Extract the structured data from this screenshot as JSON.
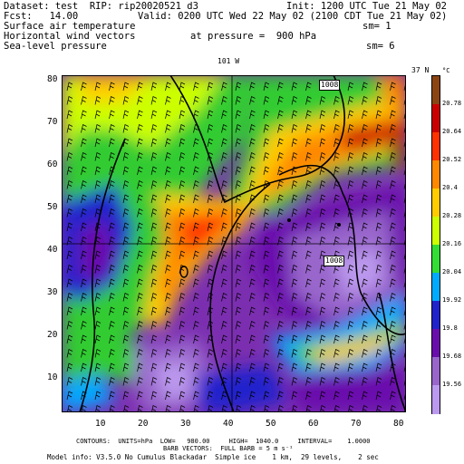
{
  "header": {
    "dataset_line": "Dataset: test  RIP: rip20020521 d3",
    "fcst_line": "Fcst:   14.00",
    "init_line": "Init: 1200 UTC Tue 21 May 02",
    "valid_line": "Valid: 0200 UTC Wed 22 May 02 (2100 CDT Tue 21 May 02)",
    "field1": "Surface air temperature",
    "sm1": "sm= 1",
    "field2": "Horizontal wind vectors",
    "pressure": "at pressure =  900 hPa",
    "field3": "Sea-level pressure",
    "sm2": "sm= 6"
  },
  "map": {
    "top_label_lon": "101 W",
    "top_label_lat": "37 N",
    "x_ticks": [
      "10",
      "20",
      "30",
      "40",
      "50",
      "60",
      "70",
      "80"
    ],
    "y_ticks": [
      "10",
      "20",
      "30",
      "40",
      "50",
      "60",
      "70",
      "80"
    ],
    "isobar_labels": [
      "1008",
      "1008"
    ]
  },
  "colorbar": {
    "unit": "°C",
    "labels": [
      "20.78",
      "20.64",
      "20.52",
      "20.4",
      "20.28",
      "20.16",
      "20.04",
      "19.92",
      "19.8",
      "19.68",
      "19.56"
    ],
    "colors": [
      "#8b4513",
      "#cc0000",
      "#ff3300",
      "#ff8800",
      "#ffcc00",
      "#ccff00",
      "#33dd33",
      "#00aaff",
      "#2222cc",
      "#6a0dad",
      "#9966cc",
      "#bb99ee"
    ]
  },
  "footer": {
    "contours": "CONTOURS:  UNITS=hPa  LOW=   980.00     HIGH=  1040.0     INTERVAL=    1.0000",
    "barbs": "BARB VECTORS:  FULL BARB = 5 m s⁻¹",
    "model_info": "Model info: V3.5.0 No Cumulus Blackadar  Simple ice    1 km,  29 levels,    2 sec"
  }
}
